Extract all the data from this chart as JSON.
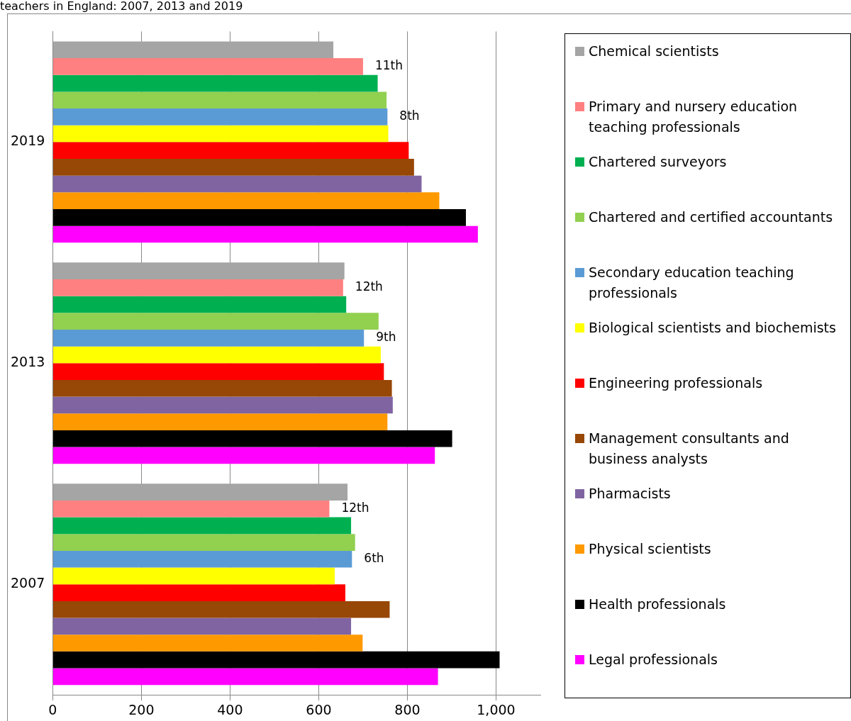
{
  "chart_data": {
    "type": "bar",
    "orientation": "horizontal",
    "title": "teachers in England: 2007, 2013 and 2019",
    "categories": [
      "2019",
      "2013",
      "2007"
    ],
    "annotations": [
      "11th",
      "12th",
      "12th",
      "8th",
      "9th",
      "6th"
    ],
    "xlim": [
      0,
      1100
    ],
    "xticks": [
      0,
      200,
      400,
      600,
      800,
      {
        "value": 1000,
        "label": "1,000"
      }
    ],
    "grid": "x",
    "legend": "right",
    "series": [
      {
        "name": "Chemical scientists",
        "color": "#a5a5a5",
        "values": [
          633,
          658,
          665
        ]
      },
      {
        "name": "Primary and nursery education teaching professionals",
        "color": "#ff8080",
        "values": [
          700,
          655,
          624
        ]
      },
      {
        "name": "Chartered surveyors",
        "color": "#00b050",
        "values": [
          733,
          662,
          673
        ]
      },
      {
        "name": "Chartered and certified accountants",
        "color": "#92d050",
        "values": [
          753,
          735,
          682
        ]
      },
      {
        "name": "Secondary education teaching professionals",
        "color": "#5b9bd5",
        "values": [
          755,
          702,
          675
        ]
      },
      {
        "name": "Biological scientists and biochemists",
        "color": "#ffff00",
        "values": [
          757,
          740,
          636
        ]
      },
      {
        "name": "Engineering professionals",
        "color": "#ff0000",
        "values": [
          803,
          747,
          660
        ]
      },
      {
        "name": "Management consultants and business analysts",
        "color": "#974706",
        "values": [
          815,
          765,
          760
        ]
      },
      {
        "name": "Pharmacists",
        "color": "#8064a2",
        "values": [
          832,
          767,
          673
        ]
      },
      {
        "name": "Physical scientists",
        "color": "#ff9900",
        "values": [
          872,
          755,
          699
        ]
      },
      {
        "name": "Health professionals",
        "color": "#000000",
        "values": [
          932,
          901,
          1008
        ]
      },
      {
        "name": "Legal professionals",
        "color": "#ff00ff",
        "values": [
          959,
          862,
          869
        ]
      }
    ]
  }
}
